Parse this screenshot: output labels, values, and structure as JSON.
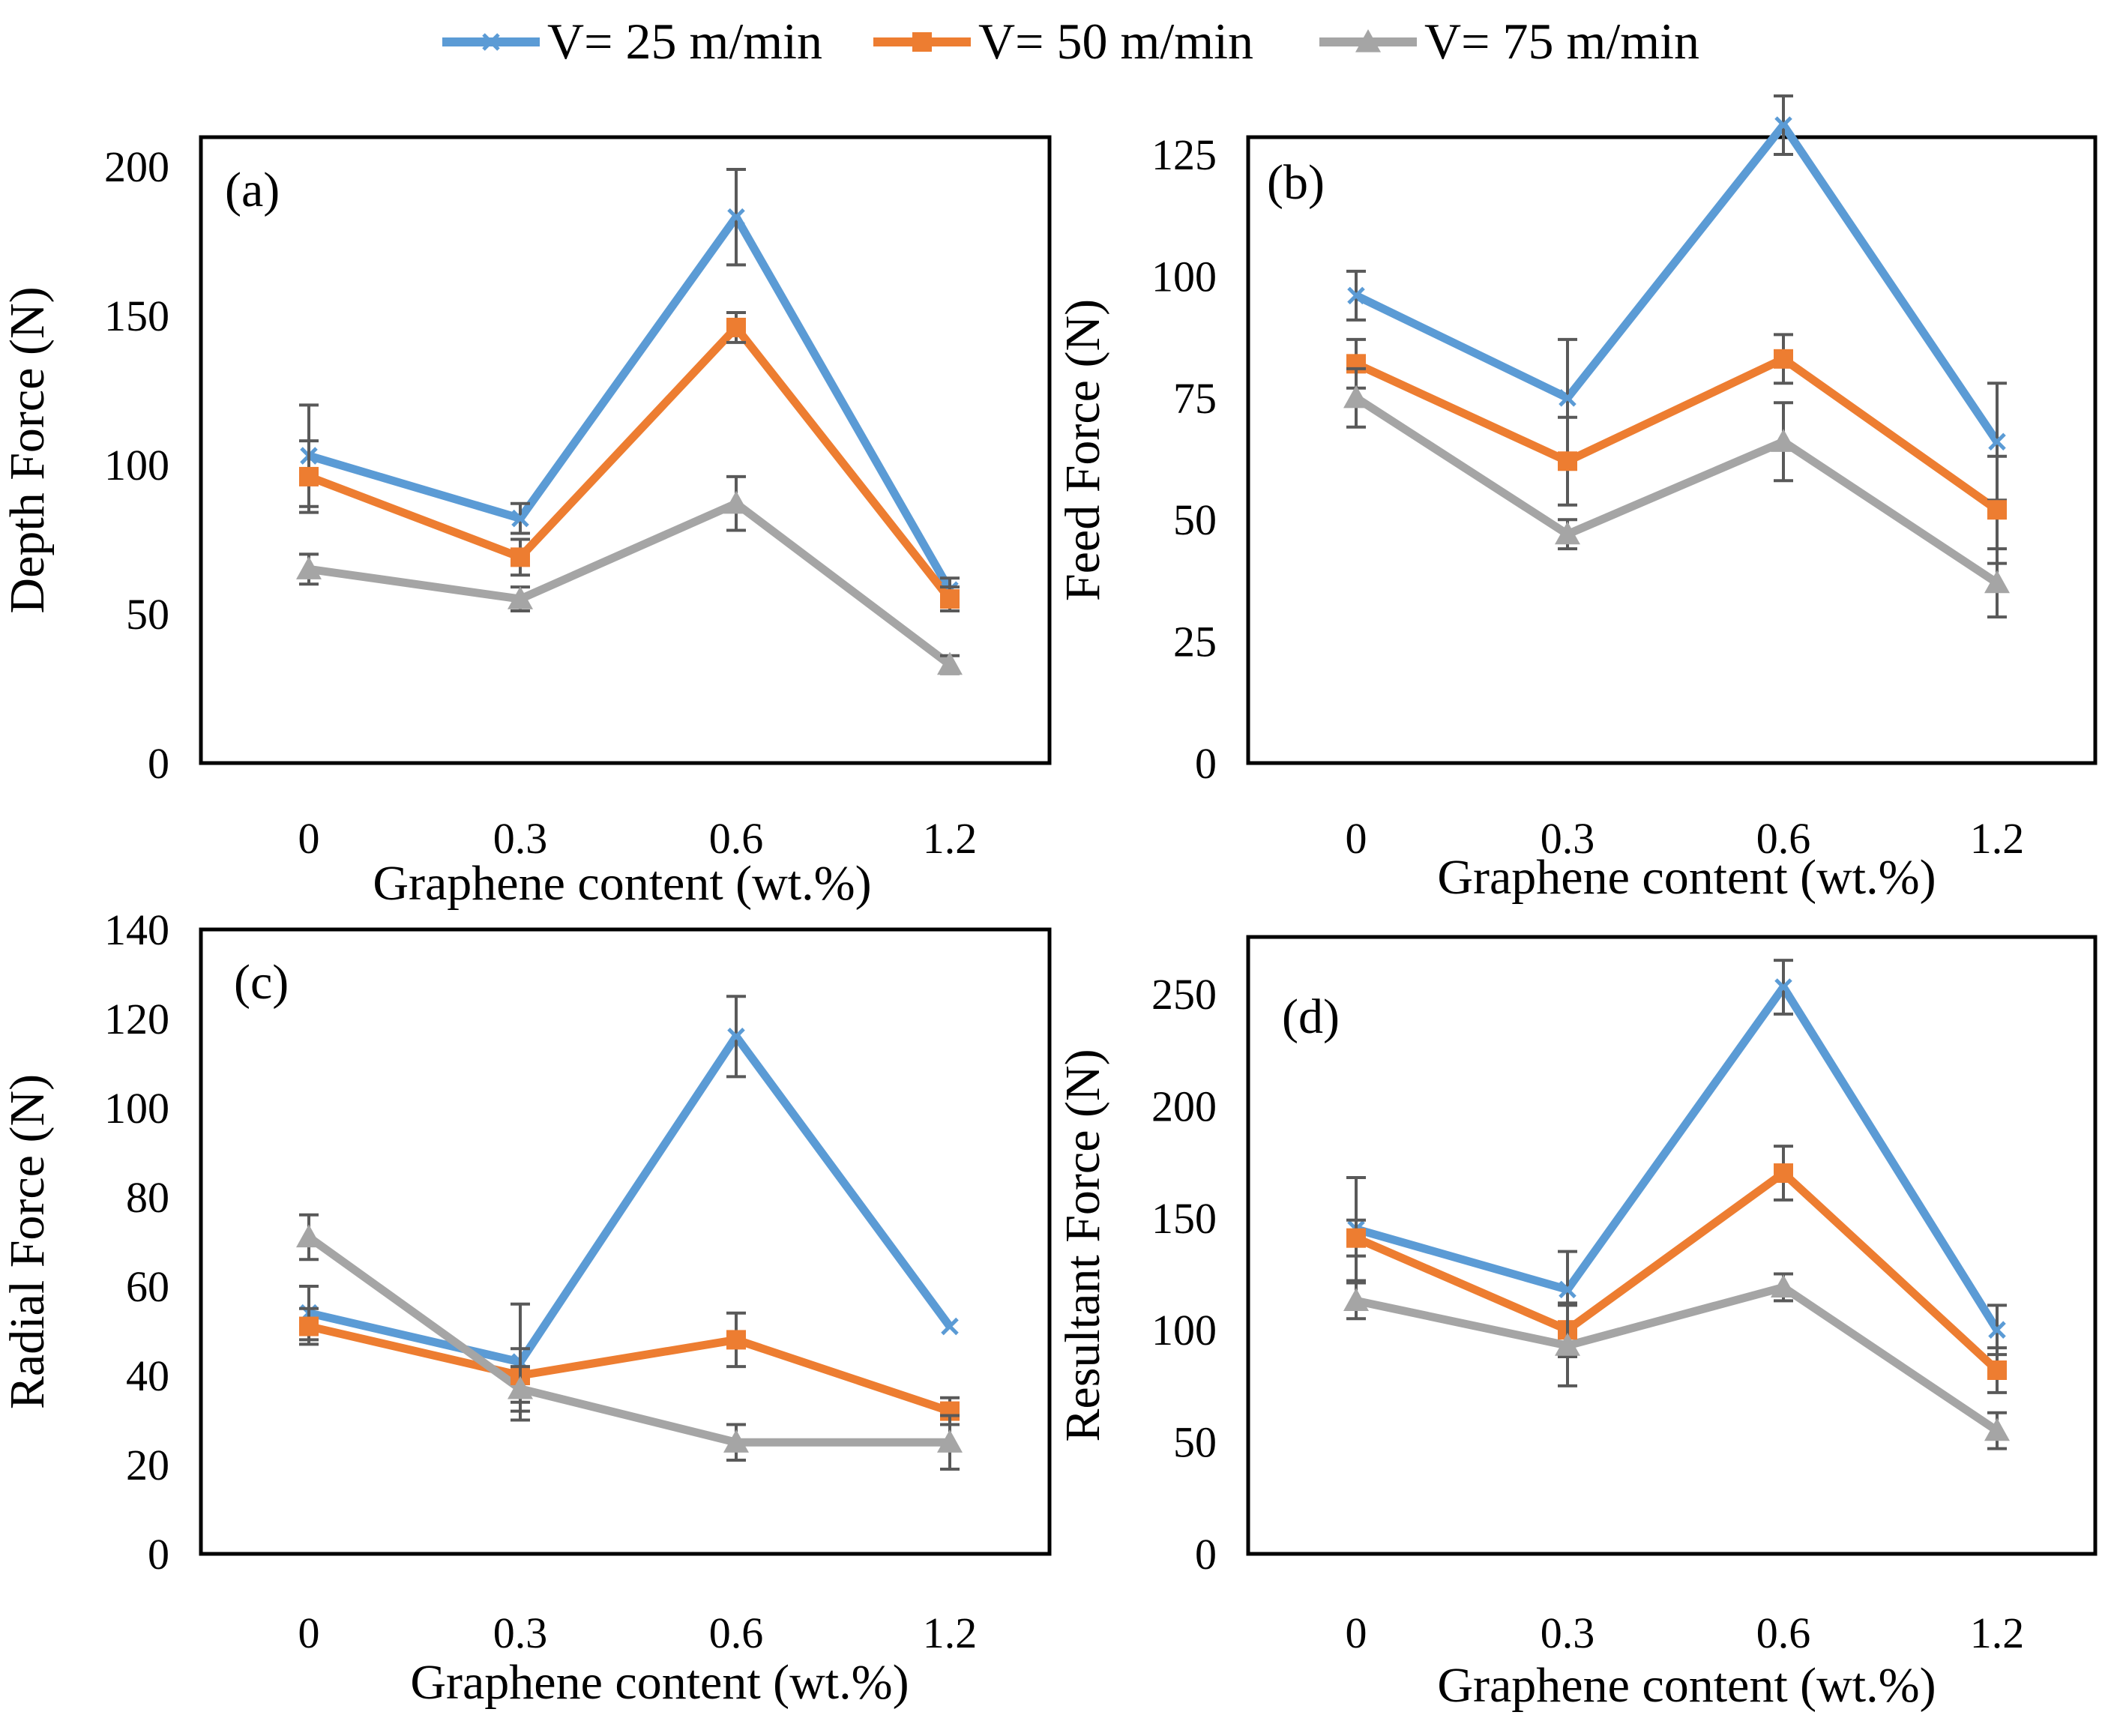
{
  "legend": [
    {
      "label": "V= 25 m/min",
      "color": "#5b9bd5",
      "marker": "x"
    },
    {
      "label": "V= 50 m/min",
      "color": "#ed7d31",
      "marker": "square"
    },
    {
      "label": "V= 75 m/min",
      "color": "#a5a5a5",
      "marker": "triangle"
    }
  ],
  "chart_data": [
    {
      "type": "line",
      "panel": "(a)",
      "ylabel": "Depth Force (N)",
      "xlabel": "Graphene content (wt.%)",
      "categories": [
        "0",
        "0.3",
        "0.6",
        "1.2"
      ],
      "ylim": [
        0,
        200
      ],
      "yticks": [
        0,
        50,
        100,
        150,
        200
      ],
      "series": [
        {
          "name": "V= 25 m/min",
          "values": [
            103,
            82,
            183,
            58
          ],
          "errors": [
            17,
            5,
            16,
            4
          ]
        },
        {
          "name": "V= 50 m/min",
          "values": [
            96,
            69,
            146,
            55
          ],
          "errors": [
            12,
            6,
            5,
            4
          ]
        },
        {
          "name": "V= 75 m/min",
          "values": [
            65,
            55,
            87,
            33
          ],
          "errors": [
            5,
            4,
            9,
            3
          ]
        }
      ]
    },
    {
      "type": "line",
      "panel": "(b)",
      "ylabel": "Feed Force (N)",
      "xlabel": "Graphene content (wt.%)",
      "categories": [
        "0",
        "0.3",
        "0.6",
        "1.2"
      ],
      "ylim": [
        0,
        135
      ],
      "yticks": [
        0,
        25,
        50,
        75,
        100,
        125
      ],
      "series": [
        {
          "name": "V= 25 m/min",
          "values": [
            96,
            75,
            131,
            66
          ],
          "errors": [
            5,
            12,
            6,
            12
          ]
        },
        {
          "name": "V= 50 m/min",
          "values": [
            82,
            62,
            83,
            52
          ],
          "errors": [
            5,
            9,
            5,
            11
          ]
        },
        {
          "name": "V= 75 m/min",
          "values": [
            75,
            47,
            66,
            37
          ],
          "errors": [
            6,
            3,
            8,
            7
          ]
        }
      ]
    },
    {
      "type": "line",
      "panel": "(c)",
      "ylabel": "Radial  Force (N)",
      "xlabel": "Graphene content (wt.%)",
      "categories": [
        "0",
        "0.3",
        "0.6",
        "1.2"
      ],
      "ylim": [
        0,
        140
      ],
      "yticks": [
        0,
        20,
        40,
        60,
        80,
        100,
        120,
        140
      ],
      "series": [
        {
          "name": "V= 25 m/min",
          "values": [
            54,
            43,
            116,
            51
          ],
          "errors": [
            6,
            13,
            9,
            0
          ]
        },
        {
          "name": "V= 50 m/min",
          "values": [
            51,
            40,
            48,
            32
          ],
          "errors": [
            4,
            6,
            6,
            3
          ]
        },
        {
          "name": "V= 75 m/min",
          "values": [
            71,
            37,
            25,
            25
          ],
          "errors": [
            5,
            5,
            4,
            6
          ]
        }
      ]
    },
    {
      "type": "line",
      "panel": "(d)",
      "ylabel": "Resultant  Force (N)",
      "xlabel": "Graphene content (wt.%)",
      "categories": [
        "0",
        "0.3",
        "0.6",
        "1.2"
      ],
      "ylim": [
        0,
        265
      ],
      "yticks": [
        0,
        50,
        100,
        150,
        200,
        250
      ],
      "series": [
        {
          "name": "V= 25 m/min",
          "values": [
            145,
            118,
            253,
            100
          ],
          "errors": [
            23,
            17,
            12,
            11
          ]
        },
        {
          "name": "V= 50 m/min",
          "values": [
            141,
            100,
            170,
            82
          ],
          "errors": [
            8,
            12,
            12,
            10
          ]
        },
        {
          "name": "V= 75 m/min",
          "values": [
            113,
            93,
            119,
            55
          ],
          "errors": [
            8,
            18,
            6,
            8
          ]
        }
      ]
    }
  ]
}
